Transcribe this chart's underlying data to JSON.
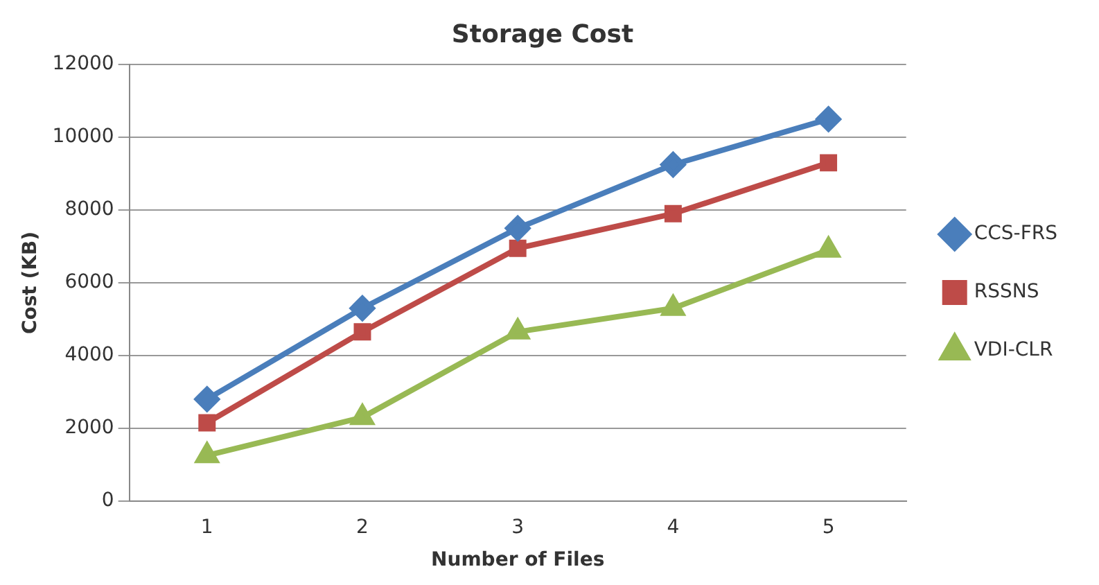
{
  "chart_data": {
    "type": "line",
    "title": "Storage Cost",
    "xlabel": "Number of Files",
    "ylabel": "Cost (KB)",
    "categories": [
      "1",
      "2",
      "3",
      "4",
      "5"
    ],
    "series": [
      {
        "name": "CCS-FRS",
        "color": "#4a7ebb",
        "marker": "diamond",
        "values": [
          2800,
          5300,
          7500,
          9250,
          10500
        ]
      },
      {
        "name": "RSSNS",
        "color": "#be4b48",
        "marker": "square",
        "values": [
          2150,
          4650,
          6950,
          7900,
          9300
        ]
      },
      {
        "name": "VDI-CLR",
        "color": "#98b954",
        "marker": "triangle",
        "values": [
          1250,
          2300,
          4650,
          5300,
          6900
        ]
      }
    ],
    "ylim": [
      0,
      12000
    ],
    "yticks": [
      0,
      2000,
      4000,
      6000,
      8000,
      10000,
      12000
    ],
    "grid": "y",
    "legend": "right"
  }
}
